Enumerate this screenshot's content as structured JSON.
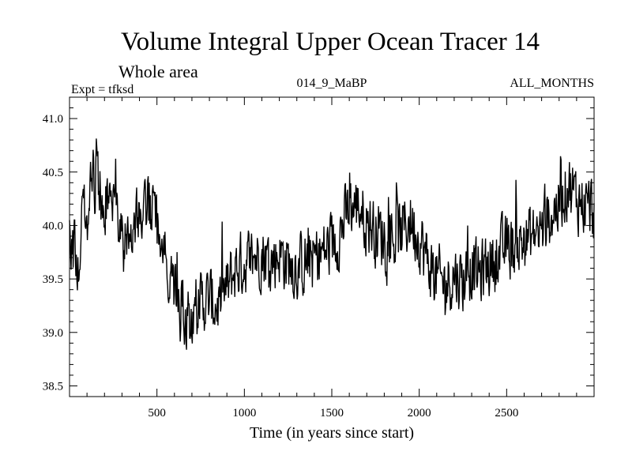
{
  "chart_data": {
    "type": "line",
    "title": "Volume Integral Upper Ocean Tracer 14",
    "subtitle": "Whole area",
    "experiment": "Expt = tfksd",
    "run_label": "014_9_MaBP",
    "period_label": "ALL_MONTHS",
    "xlabel": "Time (in years since start)",
    "ylabel": "",
    "xlim": [
      0,
      3000
    ],
    "ylim": [
      38.4,
      41.2
    ],
    "xticks": [
      500,
      1000,
      1500,
      2000,
      2500
    ],
    "xtick_labels": [
      "500",
      "1000",
      "1500",
      "2000",
      "2500"
    ],
    "yticks": [
      38.5,
      39.0,
      39.5,
      40.0,
      40.5,
      41.0
    ],
    "ytick_labels": [
      "38.5",
      "39.0",
      "39.5",
      "40.0",
      "40.5",
      "41.0"
    ],
    "series": [
      {
        "name": "Tracer 14",
        "color": "#000000",
        "x": [
          0,
          50,
          100,
          150,
          200,
          250,
          300,
          350,
          400,
          450,
          500,
          550,
          600,
          650,
          700,
          750,
          800,
          850,
          900,
          950,
          1000,
          1050,
          1100,
          1150,
          1200,
          1250,
          1300,
          1350,
          1400,
          1450,
          1500,
          1550,
          1600,
          1650,
          1700,
          1750,
          1800,
          1850,
          1900,
          1950,
          2000,
          2050,
          2100,
          2150,
          2200,
          2250,
          2300,
          2350,
          2400,
          2450,
          2500,
          2550,
          2600,
          2650,
          2700,
          2750,
          2800,
          2850,
          2900,
          2950,
          3000
        ],
        "values": [
          39.85,
          39.7,
          40.25,
          40.45,
          40.2,
          40.15,
          40.0,
          39.9,
          40.05,
          40.2,
          40.0,
          39.65,
          39.35,
          39.15,
          39.2,
          39.3,
          39.3,
          39.25,
          39.4,
          39.6,
          39.65,
          39.7,
          39.75,
          39.65,
          39.75,
          39.65,
          39.6,
          39.65,
          39.7,
          39.75,
          39.8,
          39.95,
          40.15,
          40.2,
          40.05,
          39.95,
          39.9,
          39.85,
          39.95,
          40.05,
          39.9,
          39.65,
          39.5,
          39.45,
          39.55,
          39.5,
          39.6,
          39.55,
          39.65,
          39.7,
          39.8,
          39.8,
          39.85,
          39.9,
          39.95,
          40.1,
          40.2,
          40.4,
          40.25,
          40.2,
          40.15
        ]
      }
    ]
  }
}
